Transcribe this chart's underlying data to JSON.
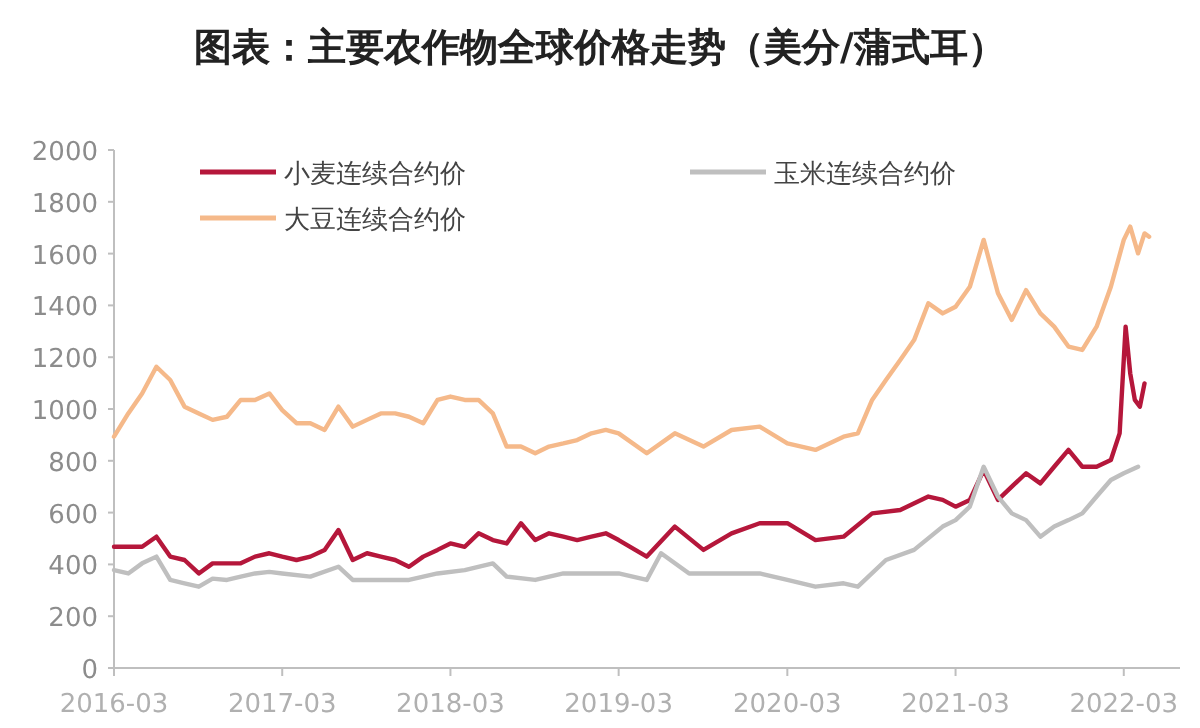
{
  "chart_data": {
    "type": "line",
    "title": "图表：主要农作物全球价格走势（美分/蒲式耳）",
    "xlim": [
      "2016-03",
      "2022-07"
    ],
    "xticks": [
      "2016-03",
      "2017-03",
      "2018-03",
      "2019-03",
      "2020-03",
      "2021-03",
      "2022-03"
    ],
    "ylim": [
      0,
      2000
    ],
    "yticks": [
      0,
      200,
      400,
      600,
      800,
      1000,
      1200,
      1400,
      1600,
      1800,
      2000
    ],
    "grid": false,
    "legend": "top",
    "marker": "none",
    "line_style": "solid",
    "series": [
      {
        "name": "小麦连续合约价",
        "color": "#b5173b",
        "x": [
          "2016-03",
          "2016-04",
          "2016-05",
          "2016-06",
          "2016-07",
          "2016-08",
          "2016-09",
          "2016-10",
          "2016-11",
          "2016-12",
          "2017-01",
          "2017-02",
          "2017-03",
          "2017-04",
          "2017-05",
          "2017-06",
          "2017-07",
          "2017-08",
          "2017-09",
          "2017-10",
          "2017-11",
          "2017-12",
          "2018-01",
          "2018-02",
          "2018-03",
          "2018-04",
          "2018-05",
          "2018-06",
          "2018-07",
          "2018-08",
          "2018-09",
          "2018-10",
          "2018-11",
          "2018-12",
          "2019-01",
          "2019-02",
          "2019-03",
          "2019-05",
          "2019-07",
          "2019-09",
          "2019-11",
          "2020-01",
          "2020-03",
          "2020-05",
          "2020-07",
          "2020-09",
          "2020-11",
          "2021-01",
          "2021-02",
          "2021-03",
          "2021-04",
          "2021-05",
          "2021-06",
          "2021-07",
          "2021-08",
          "2021-09",
          "2021-10",
          "2021-11",
          "2021-12",
          "2022-01",
          "2022-02",
          "2022-02-20",
          "2022-03-05",
          "2022-03-15",
          "2022-03-25",
          "2022-04-05",
          "2022-04-15"
        ],
        "values": [
          468,
          468,
          468,
          507,
          430,
          417,
          365,
          404,
          404,
          404,
          430,
          443,
          430,
          417,
          430,
          456,
          533,
          417,
          443,
          430,
          417,
          391,
          430,
          456,
          481,
          468,
          520,
          494,
          481,
          559,
          494,
          520,
          507,
          494,
          507,
          520,
          494,
          430,
          546,
          456,
          520,
          559,
          559,
          494,
          507,
          597,
          610,
          662,
          649,
          623,
          649,
          764,
          649,
          700,
          752,
          713,
          777,
          842,
          777,
          777,
          803,
          906,
          1318,
          1138,
          1035,
          1009,
          1099
        ]
      },
      {
        "name": "玉米连续合约价",
        "color": "#bfbfbf",
        "x": [
          "2016-03",
          "2016-04",
          "2016-05",
          "2016-06",
          "2016-07",
          "2016-08",
          "2016-09",
          "2016-10",
          "2016-11",
          "2016-12",
          "2017-01",
          "2017-02",
          "2017-03",
          "2017-05",
          "2017-07",
          "2017-08",
          "2017-10",
          "2017-12",
          "2018-02",
          "2018-04",
          "2018-06",
          "2018-07",
          "2018-09",
          "2018-11",
          "2019-01",
          "2019-03",
          "2019-05",
          "2019-06",
          "2019-08",
          "2019-10",
          "2020-01",
          "2020-03",
          "2020-05",
          "2020-07",
          "2020-08",
          "2020-10",
          "2020-12",
          "2021-02",
          "2021-03",
          "2021-04",
          "2021-05",
          "2021-06",
          "2021-07",
          "2021-08",
          "2021-09",
          "2021-10",
          "2021-11",
          "2021-12",
          "2022-01",
          "2022-02",
          "2022-03",
          "2022-04"
        ],
        "values": [
          378,
          365,
          404,
          430,
          340,
          327,
          314,
          345,
          340,
          353,
          365,
          371,
          365,
          353,
          391,
          340,
          340,
          340,
          365,
          378,
          404,
          353,
          340,
          365,
          365,
          365,
          340,
          443,
          365,
          365,
          365,
          340,
          314,
          327,
          314,
          417,
          456,
          546,
          571,
          623,
          777,
          662,
          597,
          571,
          507,
          546,
          571,
          597,
          662,
          726,
          752,
          777
        ]
      },
      {
        "name": "大豆连续合约价",
        "color": "#f5b98a",
        "x": [
          "2016-03",
          "2016-04",
          "2016-05",
          "2016-06",
          "2016-07",
          "2016-08",
          "2016-09",
          "2016-10",
          "2016-11",
          "2016-12",
          "2017-01",
          "2017-02",
          "2017-03",
          "2017-04",
          "2017-05",
          "2017-06",
          "2017-07",
          "2017-08",
          "2017-09",
          "2017-10",
          "2017-11",
          "2017-12",
          "2018-01",
          "2018-02",
          "2018-03",
          "2018-04",
          "2018-05",
          "2018-06",
          "2018-07",
          "2018-08",
          "2018-09",
          "2018-10",
          "2018-11",
          "2018-12",
          "2019-01",
          "2019-02",
          "2019-03",
          "2019-05",
          "2019-07",
          "2019-09",
          "2019-11",
          "2020-01",
          "2020-03",
          "2020-05",
          "2020-07",
          "2020-08",
          "2020-09",
          "2020-10",
          "2020-11",
          "2020-12",
          "2021-01",
          "2021-02",
          "2021-03",
          "2021-04",
          "2021-05",
          "2021-06",
          "2021-07",
          "2021-08",
          "2021-09",
          "2021-10",
          "2021-11",
          "2021-12",
          "2022-01",
          "2022-02",
          "2022-03",
          "2022-03-15",
          "2022-04",
          "2022-04-15",
          "2022-04-25"
        ],
        "values": [
          893,
          983,
          1060,
          1163,
          1112,
          1009,
          983,
          958,
          970,
          1035,
          1035,
          1060,
          996,
          945,
          945,
          919,
          1009,
          932,
          958,
          983,
          983,
          970,
          945,
          1035,
          1048,
          1035,
          1035,
          983,
          855,
          855,
          829,
          855,
          867,
          880,
          906,
          919,
          906,
          829,
          906,
          855,
          919,
          932,
          867,
          842,
          893,
          906,
          1035,
          1112,
          1189,
          1266,
          1408,
          1369,
          1395,
          1472,
          1653,
          1447,
          1344,
          1459,
          1369,
          1318,
          1241,
          1228,
          1318,
          1472,
          1653,
          1704,
          1601,
          1678,
          1665
        ]
      }
    ]
  }
}
